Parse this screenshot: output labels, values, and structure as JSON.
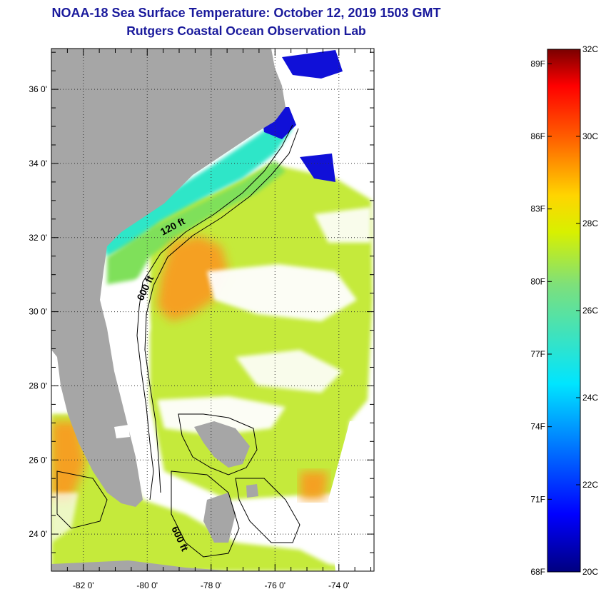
{
  "header": {
    "title_line1": "NOAA-18 Sea Surface Temperature:  October 12, 2019 1503 GMT",
    "title_line2": "Rutgers Coastal Ocean Observation Lab"
  },
  "map": {
    "lon_range": [
      -83.0,
      -72.9
    ],
    "lat_range": [
      23.0,
      37.1
    ],
    "lat_labels": [
      "24 0'",
      "26 0'",
      "28 0'",
      "30 0'",
      "32 0'",
      "34 0'",
      "36 0'"
    ],
    "lat_values": [
      24,
      26,
      28,
      30,
      32,
      34,
      36
    ],
    "lon_labels": [
      "-82 0'",
      "-80 0'",
      "-78 0'",
      "-76 0'",
      "-74 0'"
    ],
    "lon_values": [
      -82,
      -80,
      -78,
      -76,
      -74
    ],
    "contour_labels": [
      "120 ft",
      "600 ft",
      "600 ft"
    ],
    "colors": {
      "land": "#a6a6a6",
      "nodata": "#ffffff",
      "coastal": "#2ee6c8",
      "shelf": "#7fe05a",
      "offshore": "#c5ea3a",
      "warm": "#f5a020",
      "cold": "#1010d8"
    }
  },
  "colorbar": {
    "fahrenheit_labels": [
      "89F",
      "86F",
      "83F",
      "80F",
      "77F",
      "74F",
      "71F",
      "68F"
    ],
    "celsius_labels": [
      "32C",
      "30C",
      "28C",
      "26C",
      "24C",
      "22C",
      "20C"
    ],
    "min_c": 20,
    "max_c": 32
  }
}
